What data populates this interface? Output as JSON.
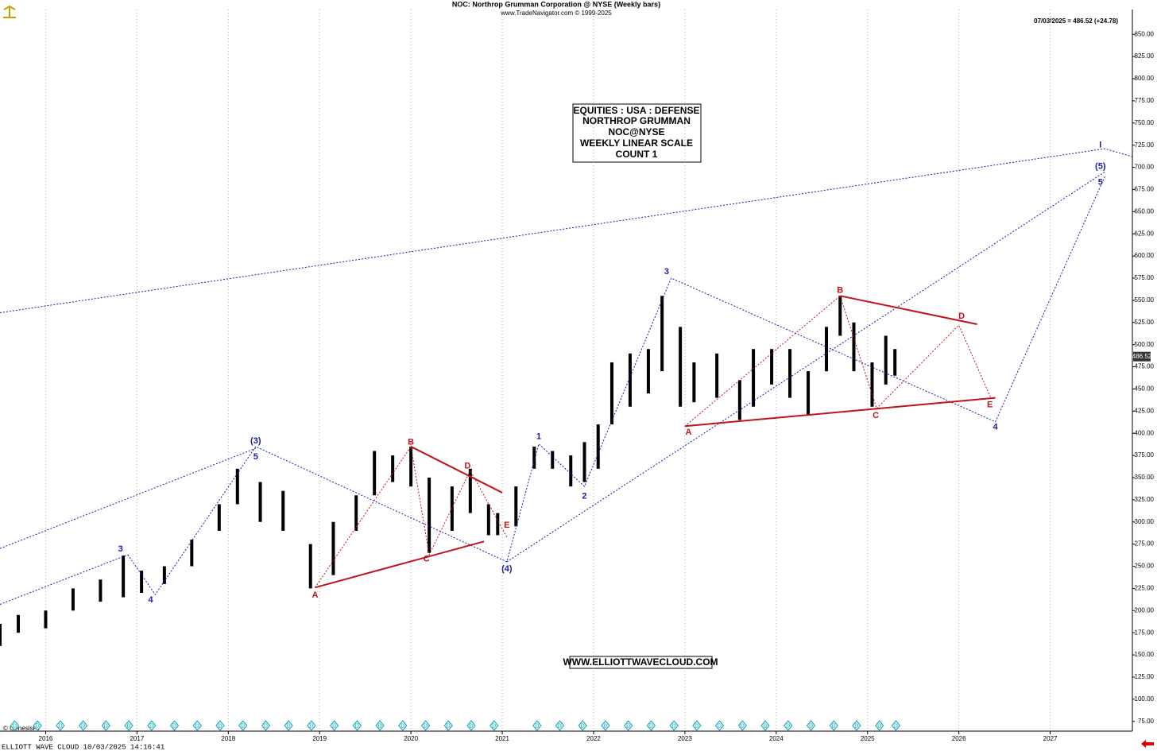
{
  "chart_data": {
    "type": "ohlc-bars",
    "title": "NOC:  Northrop Grumman Corporation @ NYSE  (Weekly bars)",
    "subtitle": "www.TradeNavigator.com © 1999-2025",
    "last_quote": "07/03/2025 = 486.52 (+24.78)",
    "last_value": 486.52,
    "info_box": [
      "EQUITIES : USA : DEFENSE",
      "NORTHROP GRUMMAN",
      "NOC@NYSE",
      "WEEKLY LINEAR SCALE",
      "COUNT 1"
    ],
    "website": "WWW.ELLIOTTWAVECLOUD.COM",
    "footer": "ELLIOTT WAVE CLOUD   10/03/2025 14:16:41",
    "source": "© GenesisFT",
    "color": "#000000",
    "grid": "x",
    "xlim": [
      2015.5,
      2027.9
    ],
    "xticks": [
      2016,
      2017,
      2018,
      2019,
      2020,
      2021,
      2022,
      2023,
      2024,
      2025,
      2026,
      2027
    ],
    "ylim": [
      64,
      878
    ],
    "yticks": [
      {
        "value": 75,
        "label": "75.00"
      },
      {
        "value": 100,
        "label": "100.00"
      },
      {
        "value": 125,
        "label": "125.00"
      },
      {
        "value": 150,
        "label": "150.00"
      },
      {
        "value": 175,
        "label": "175.00"
      },
      {
        "value": 200,
        "label": "200.00"
      },
      {
        "value": 225,
        "label": "225.00"
      },
      {
        "value": 250,
        "label": "250.00"
      },
      {
        "value": 275,
        "label": "275.00"
      },
      {
        "value": 300,
        "label": "300.00"
      },
      {
        "value": 325,
        "label": "325.00"
      },
      {
        "value": 350,
        "label": "350.00"
      },
      {
        "value": 375,
        "label": "375.00"
      },
      {
        "value": 400,
        "label": "400.00"
      },
      {
        "value": 425,
        "label": "425.00"
      },
      {
        "value": 450,
        "label": "450.00"
      },
      {
        "value": 475,
        "label": "475.00"
      },
      {
        "value": 500,
        "label": "500.00"
      },
      {
        "value": 525,
        "label": "525.00"
      },
      {
        "value": 550,
        "label": "550.00"
      },
      {
        "value": 575,
        "label": "575.00"
      },
      {
        "value": 600,
        "label": "600.00"
      },
      {
        "value": 625,
        "label": "625.00"
      },
      {
        "value": 650,
        "label": "650.00"
      },
      {
        "value": 675,
        "label": "675.00"
      },
      {
        "value": 700,
        "label": "700.00"
      },
      {
        "value": 725,
        "label": "725.00"
      },
      {
        "value": 750,
        "label": "750.00"
      },
      {
        "value": 775,
        "label": "775.00"
      },
      {
        "value": 800,
        "label": "800.00"
      },
      {
        "value": 825,
        "label": "825.00"
      },
      {
        "value": 850,
        "label": "850.00"
      }
    ],
    "x": [
      2015.5,
      2015.7,
      2016.0,
      2016.3,
      2016.6,
      2016.85,
      2017.05,
      2017.3,
      2017.6,
      2017.9,
      2018.1,
      2018.35,
      2018.6,
      2018.9,
      2019.15,
      2019.4,
      2019.6,
      2019.8,
      2020.0,
      2020.2,
      2020.45,
      2020.65,
      2020.85,
      2020.95,
      2021.15,
      2021.35,
      2021.55,
      2021.75,
      2021.9,
      2022.05,
      2022.2,
      2022.4,
      2022.6,
      2022.75,
      2022.95,
      2023.1,
      2023.35,
      2023.6,
      2023.75,
      2023.95,
      2024.15,
      2024.35,
      2024.55,
      2024.7,
      2024.85,
      2025.05,
      2025.2,
      2025.3
    ],
    "high": [
      185,
      195,
      200,
      225,
      235,
      262,
      245,
      250,
      280,
      320,
      360,
      345,
      335,
      275,
      300,
      330,
      380,
      375,
      385,
      350,
      340,
      360,
      320,
      310,
      340,
      385,
      380,
      375,
      390,
      410,
      480,
      490,
      495,
      555,
      520,
      480,
      490,
      460,
      495,
      495,
      495,
      470,
      520,
      555,
      525,
      480,
      510,
      495
    ],
    "low": [
      160,
      175,
      180,
      200,
      210,
      215,
      220,
      230,
      250,
      290,
      320,
      300,
      290,
      225,
      240,
      290,
      330,
      345,
      340,
      265,
      290,
      310,
      285,
      285,
      295,
      360,
      360,
      340,
      345,
      360,
      410,
      430,
      445,
      470,
      430,
      435,
      440,
      415,
      430,
      455,
      440,
      420,
      470,
      510,
      470,
      430,
      455,
      465
    ],
    "overlays": [
      {
        "color": "#1a1aa6",
        "style": "dotted",
        "x": [
          2015.5,
          2027.6,
          2027.9
        ],
        "y": [
          536,
          721,
          712
        ]
      },
      {
        "color": "#1a1aa6",
        "style": "dotted",
        "x": [
          2015.5,
          2018.3
        ],
        "y": [
          270,
          383
        ]
      },
      {
        "color": "#1a1aa6",
        "style": "dotted",
        "x": [
          2015.5,
          2016.9
        ],
        "y": [
          207,
          263
        ]
      },
      {
        "color": "#1a1aa6",
        "style": "dotted",
        "x": [
          2016.9,
          2017.2,
          2018.3,
          2021.05,
          2021.4,
          2021.9,
          2022.85,
          2026.4,
          2027.6
        ],
        "y": [
          263,
          218,
          385,
          255,
          388,
          340,
          575,
          413,
          690
        ]
      },
      {
        "color": "#1a1aa6",
        "style": "dotted",
        "x": [
          2021.05,
          2027.6
        ],
        "y": [
          255,
          695
        ]
      },
      {
        "color": "#c0141c",
        "style": "solid",
        "x": [
          2018.95,
          2020.8
        ],
        "y": [
          226,
          278
        ]
      },
      {
        "color": "#c0141c",
        "style": "solid",
        "x": [
          2020.0,
          2021.0
        ],
        "y": [
          385,
          333
        ]
      },
      {
        "color": "#c0141c",
        "style": "solid",
        "x": [
          2023.0,
          2026.4
        ],
        "y": [
          408,
          440
        ]
      },
      {
        "color": "#c0141c",
        "style": "solid",
        "x": [
          2024.7,
          2026.2
        ],
        "y": [
          555,
          523
        ]
      },
      {
        "color": "#c0141c",
        "style": "dotted",
        "x": [
          2018.95,
          2020.0,
          2020.2,
          2020.65,
          2021.05
        ],
        "y": [
          226,
          385,
          263,
          358,
          283
        ]
      },
      {
        "color": "#c0141c",
        "style": "dotted",
        "x": [
          2023.0,
          2024.7,
          2025.1,
          2026.0,
          2026.35
        ],
        "y": [
          408,
          555,
          428,
          522,
          440
        ]
      }
    ],
    "wave_labels": [
      {
        "text": "3",
        "color": "#1a1aa6",
        "x": 2016.82,
        "y": 269
      },
      {
        "text": "4",
        "color": "#1a1aa6",
        "x": 2017.15,
        "y": 212
      },
      {
        "text": "(3)",
        "color": "#1a1aa6",
        "x": 2018.3,
        "y": 391
      },
      {
        "text": "5",
        "color": "#1a1aa6",
        "x": 2018.3,
        "y": 373
      },
      {
        "text": "(4)",
        "color": "#1a1aa6",
        "x": 2021.05,
        "y": 247
      },
      {
        "text": "1",
        "color": "#1a1aa6",
        "x": 2021.4,
        "y": 396
      },
      {
        "text": "2",
        "color": "#1a1aa6",
        "x": 2021.9,
        "y": 329
      },
      {
        "text": "3",
        "color": "#1a1aa6",
        "x": 2022.8,
        "y": 582
      },
      {
        "text": "4",
        "color": "#1a1aa6",
        "x": 2026.4,
        "y": 407
      },
      {
        "text": "5",
        "color": "#1a1aa6",
        "x": 2027.55,
        "y": 683
      },
      {
        "text": "(5)",
        "color": "#1a1aa6",
        "x": 2027.55,
        "y": 701
      },
      {
        "text": "I",
        "color": "#1a1aa6",
        "x": 2027.55,
        "y": 725
      },
      {
        "text": "A",
        "color": "#c0141c",
        "x": 2018.95,
        "y": 217
      },
      {
        "text": "B",
        "color": "#c0141c",
        "x": 2020.0,
        "y": 390
      },
      {
        "text": "C",
        "color": "#c0141c",
        "x": 2020.17,
        "y": 258
      },
      {
        "text": "D",
        "color": "#c0141c",
        "x": 2020.62,
        "y": 363
      },
      {
        "text": "E",
        "color": "#c0141c",
        "x": 2021.05,
        "y": 296
      },
      {
        "text": "A",
        "color": "#c0141c",
        "x": 2023.04,
        "y": 401
      },
      {
        "text": "B",
        "color": "#c0141c",
        "x": 2024.7,
        "y": 561
      },
      {
        "text": "C",
        "color": "#c0141c",
        "x": 2025.09,
        "y": 420
      },
      {
        "text": "D",
        "color": "#c0141c",
        "x": 2026.03,
        "y": 532
      },
      {
        "text": "E",
        "color": "#c0141c",
        "x": 2026.34,
        "y": 432
      }
    ],
    "dividend_label": "D",
    "dividends": [
      2015.66,
      2015.91,
      2016.16,
      2016.41,
      2016.66,
      2016.91,
      2017.16,
      2017.41,
      2017.66,
      2017.91,
      2018.16,
      2018.41,
      2018.66,
      2018.91,
      2019.16,
      2019.41,
      2019.66,
      2019.91,
      2020.16,
      2020.41,
      2020.66,
      2020.91,
      2021.38,
      2021.63,
      2021.88,
      2022.13,
      2022.38,
      2022.63,
      2022.88,
      2023.13,
      2023.38,
      2023.63,
      2023.88,
      2024.13,
      2024.38,
      2024.63,
      2024.88,
      2025.13,
      2025.31
    ]
  }
}
